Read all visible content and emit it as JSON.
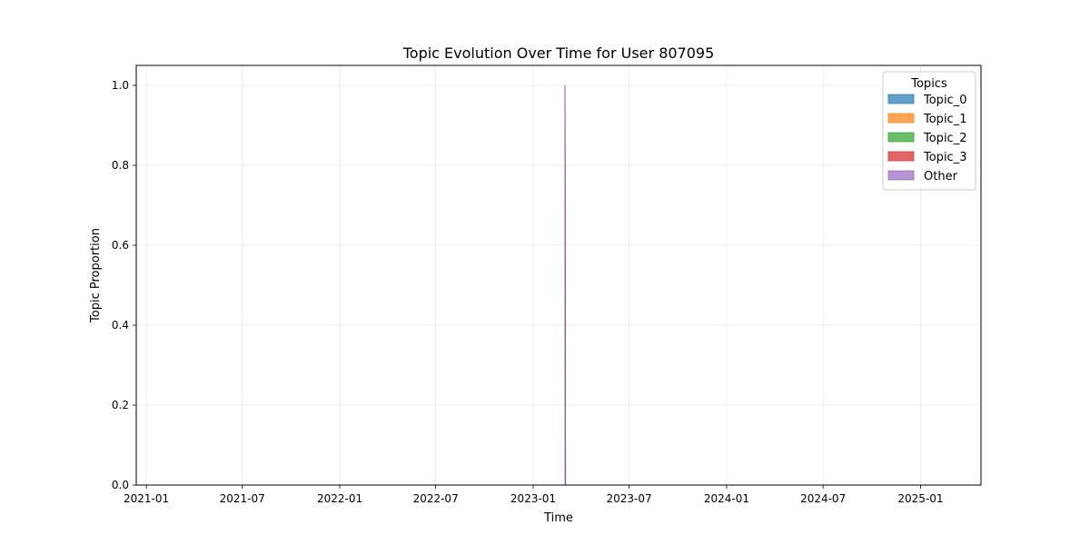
{
  "chart_data": {
    "type": "area",
    "title": "Topic Evolution Over Time for User 807095",
    "xlabel": "Time",
    "ylabel": "Topic Proportion",
    "xlim": [
      "2020-12-13",
      "2025-04-25"
    ],
    "ylim": [
      0,
      1.05
    ],
    "x_ticks": [
      "2021-01",
      "2021-07",
      "2022-01",
      "2022-07",
      "2023-01",
      "2023-07",
      "2024-01",
      "2024-07",
      "2025-01"
    ],
    "y_ticks": [
      "0.0",
      "0.2",
      "0.4",
      "0.6",
      "0.8",
      "1.0"
    ],
    "grid": true,
    "stacked": true,
    "legend": {
      "title": "Topics",
      "placement": "top-right"
    },
    "x": [
      "2023-03-02",
      "2023-03-03"
    ],
    "series": [
      {
        "name": "Topic_0",
        "color": "#1f77b4",
        "values": [
          1.0,
          0.0
        ]
      },
      {
        "name": "Topic_1",
        "color": "#ff7f0e",
        "values": [
          0.0,
          0.0
        ]
      },
      {
        "name": "Topic_2",
        "color": "#2ca02c",
        "values": [
          0.0,
          0.0
        ]
      },
      {
        "name": "Topic_3",
        "color": "#d62728",
        "values": [
          0.0,
          0.0
        ]
      },
      {
        "name": "Other",
        "color": "#9467bd",
        "values": [
          0.0,
          0.0
        ]
      }
    ]
  }
}
